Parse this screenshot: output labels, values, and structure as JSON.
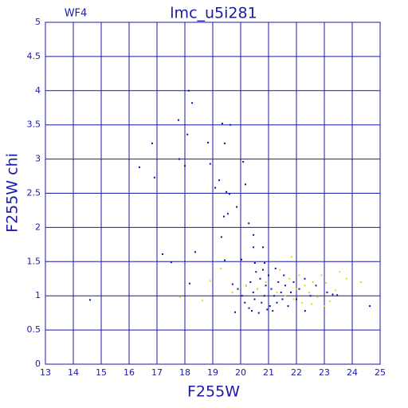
{
  "chart_data": {
    "type": "scatter",
    "title": "lmc_u5i281",
    "annotation": "WF4",
    "x_label": "F255W",
    "y_label": "F255W chi",
    "xlim": [
      13,
      25
    ],
    "ylim": [
      0,
      5
    ],
    "xticks": [
      13,
      14,
      15,
      16,
      17,
      18,
      19,
      20,
      21,
      22,
      23,
      24,
      25
    ],
    "yticks": [
      0,
      0.5,
      1,
      1.5,
      2,
      2.5,
      3,
      3.5,
      4,
      4.5,
      5
    ],
    "grid": true,
    "axis_color": "#1a1aa8",
    "series": [
      {
        "color": "#1010a0",
        "x": [
          14.6,
          16.37,
          16.83,
          16.91,
          17.2,
          17.51,
          17.77,
          17.8,
          18.0,
          18.09,
          18.14,
          18.26,
          18.17,
          18.37,
          18.83,
          18.91,
          19.09,
          19.23,
          19.34,
          19.43,
          19.63,
          19.4,
          19.49,
          19.6,
          19.54,
          19.31,
          19.43,
          19.71,
          19.8,
          19.86,
          20.09,
          20.17,
          20.03,
          20.29,
          20.46,
          20.46,
          20.51,
          20.86,
          20.8,
          24.63,
          23.46,
          22.31,
          20.2,
          20.35,
          20.45,
          20.5,
          20.6,
          20.7,
          20.75,
          20.85,
          20.9,
          21.0,
          21.05,
          21.1,
          21.2,
          21.25,
          21.3,
          21.35,
          21.45,
          21.5,
          21.55,
          21.6,
          21.7,
          21.8,
          21.9,
          22.0,
          22.1,
          22.3,
          22.5,
          22.7,
          23.1,
          23.3,
          20.3,
          20.4,
          20.65,
          20.95,
          21.15,
          19.9,
          20.05,
          20.15,
          20.55,
          20.8
        ],
        "values": [
          0.94,
          2.88,
          3.23,
          2.73,
          1.61,
          1.49,
          3.57,
          3.0,
          2.9,
          3.36,
          4.0,
          3.82,
          1.18,
          1.64,
          3.24,
          2.93,
          2.58,
          2.69,
          3.52,
          3.23,
          3.5,
          2.16,
          2.52,
          2.49,
          2.2,
          1.86,
          1.52,
          1.17,
          0.76,
          2.3,
          2.96,
          2.63,
          1.53,
          2.06,
          1.89,
          1.71,
          1.48,
          1.48,
          1.71,
          0.85,
          1.01,
          0.78,
          1.15,
          1.2,
          1.05,
          0.95,
          1.1,
          1.25,
          0.9,
          1.0,
          1.15,
          1.3,
          0.85,
          1.1,
          1.0,
          1.4,
          0.9,
          1.2,
          1.05,
          0.95,
          1.3,
          1.15,
          0.85,
          1.05,
          1.2,
          0.95,
          1.1,
          1.25,
          1.0,
          1.15,
          1.05,
          1.02,
          0.82,
          0.78,
          0.75,
          0.8,
          0.78,
          1.1,
          1.0,
          0.9,
          1.35,
          1.38
        ]
      },
      {
        "color": "#e8d800",
        "x": [
          17.83,
          18.63,
          18.91,
          19.29,
          19.7,
          20.2,
          20.6,
          20.9,
          21.3,
          21.6,
          21.75,
          21.83,
          21.9,
          22.0,
          22.1,
          22.2,
          22.3,
          22.45,
          22.6,
          22.75,
          22.9,
          23.06,
          23.2,
          23.4,
          23.55,
          23.8,
          24.31,
          21.4,
          22.55,
          23.0
        ],
        "values": [
          0.98,
          0.93,
          1.22,
          1.4,
          1.05,
          1.15,
          1.1,
          1.2,
          1.05,
          1.0,
          1.25,
          1.57,
          0.95,
          1.1,
          1.3,
          0.9,
          1.15,
          1.05,
          1.2,
          0.98,
          1.3,
          1.19,
          0.92,
          1.08,
          1.35,
          1.25,
          1.2,
          1.38,
          0.88,
          0.85
        ]
      }
    ]
  }
}
